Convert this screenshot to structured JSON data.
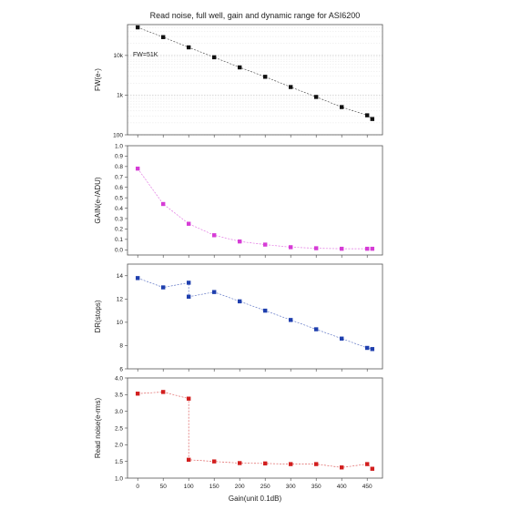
{
  "chart_data": {
    "type": "scatter",
    "title": "Read noise, full well, gain and dynamic range for ASI6200",
    "xlabel": "Gain(unit 0.1dB)",
    "xlim": [
      -20,
      480
    ],
    "x_ticks": [
      0,
      50,
      100,
      150,
      200,
      250,
      300,
      350,
      400,
      450
    ],
    "x_tick_labels": [
      "0",
      "50",
      "100",
      "150",
      "200",
      "250",
      "300",
      "350",
      "400",
      "450"
    ],
    "grid": "log panel only",
    "panels": [
      {
        "ylabel": "FW(e-)",
        "scale": "log",
        "ylim": [
          100,
          60000
        ],
        "y_ticks": [
          100,
          1000,
          10000
        ],
        "y_tick_labels": [
          "100",
          "1k",
          "10k"
        ],
        "color": "#111111",
        "annotation": "FW=51K",
        "points": [
          {
            "x": 0,
            "y": 51000
          },
          {
            "x": 50,
            "y": 29000
          },
          {
            "x": 100,
            "y": 16000
          },
          {
            "x": 150,
            "y": 9000
          },
          {
            "x": 200,
            "y": 5000
          },
          {
            "x": 250,
            "y": 2900
          },
          {
            "x": 300,
            "y": 1600
          },
          {
            "x": 350,
            "y": 900
          },
          {
            "x": 400,
            "y": 500
          },
          {
            "x": 450,
            "y": 310
          },
          {
            "x": 460,
            "y": 250
          }
        ]
      },
      {
        "ylabel": "GAIN(e-/ADU)",
        "scale": "linear",
        "ylim": [
          -0.05,
          1.0
        ],
        "y_ticks": [
          0.0,
          0.1,
          0.2,
          0.3,
          0.4,
          0.5,
          0.6,
          0.7,
          0.8,
          0.9,
          1.0
        ],
        "y_tick_labels": [
          "0.0",
          "0.1",
          "0.2",
          "0.3",
          "0.4",
          "0.5",
          "0.6",
          "0.7",
          "0.8",
          "0.9",
          "1.0"
        ],
        "color": "#d63cd6",
        "points": [
          {
            "x": 0,
            "y": 0.78
          },
          {
            "x": 50,
            "y": 0.44
          },
          {
            "x": 100,
            "y": 0.25
          },
          {
            "x": 150,
            "y": 0.14
          },
          {
            "x": 200,
            "y": 0.08
          },
          {
            "x": 250,
            "y": 0.05
          },
          {
            "x": 300,
            "y": 0.025
          },
          {
            "x": 350,
            "y": 0.015
          },
          {
            "x": 400,
            "y": 0.01
          },
          {
            "x": 450,
            "y": 0.01
          },
          {
            "x": 460,
            "y": 0.01
          }
        ]
      },
      {
        "ylabel": "DR(stops)",
        "scale": "linear",
        "ylim": [
          6,
          15
        ],
        "y_ticks": [
          6,
          8,
          10,
          12,
          14
        ],
        "y_tick_labels": [
          "6",
          "8",
          "10",
          "12",
          "14"
        ],
        "color": "#1f3fae",
        "points": [
          {
            "x": 0,
            "y": 13.8
          },
          {
            "x": 50,
            "y": 13.0
          },
          {
            "x": 100,
            "y": 13.4
          },
          {
            "x": 100,
            "y": 12.2
          },
          {
            "x": 150,
            "y": 12.6
          },
          {
            "x": 200,
            "y": 11.8
          },
          {
            "x": 250,
            "y": 11.0
          },
          {
            "x": 300,
            "y": 10.2
          },
          {
            "x": 350,
            "y": 9.4
          },
          {
            "x": 400,
            "y": 8.6
          },
          {
            "x": 450,
            "y": 7.8
          },
          {
            "x": 460,
            "y": 7.7
          }
        ]
      },
      {
        "ylabel": "Read noise(e-rms)",
        "scale": "linear",
        "ylim": [
          1.0,
          4.0
        ],
        "y_ticks": [
          1.0,
          1.5,
          2.0,
          2.5,
          3.0,
          3.5,
          4.0
        ],
        "y_tick_labels": [
          "1.0",
          "1.5",
          "2.0",
          "2.5",
          "3.0",
          "3.5",
          "4.0"
        ],
        "color": "#d21f1f",
        "points": [
          {
            "x": 0,
            "y": 3.53
          },
          {
            "x": 50,
            "y": 3.58
          },
          {
            "x": 100,
            "y": 3.38
          },
          {
            "x": 100,
            "y": 1.55
          },
          {
            "x": 150,
            "y": 1.5
          },
          {
            "x": 200,
            "y": 1.45
          },
          {
            "x": 250,
            "y": 1.44
          },
          {
            "x": 300,
            "y": 1.42
          },
          {
            "x": 350,
            "y": 1.42
          },
          {
            "x": 400,
            "y": 1.32
          },
          {
            "x": 450,
            "y": 1.42
          },
          {
            "x": 460,
            "y": 1.28
          }
        ]
      }
    ]
  }
}
